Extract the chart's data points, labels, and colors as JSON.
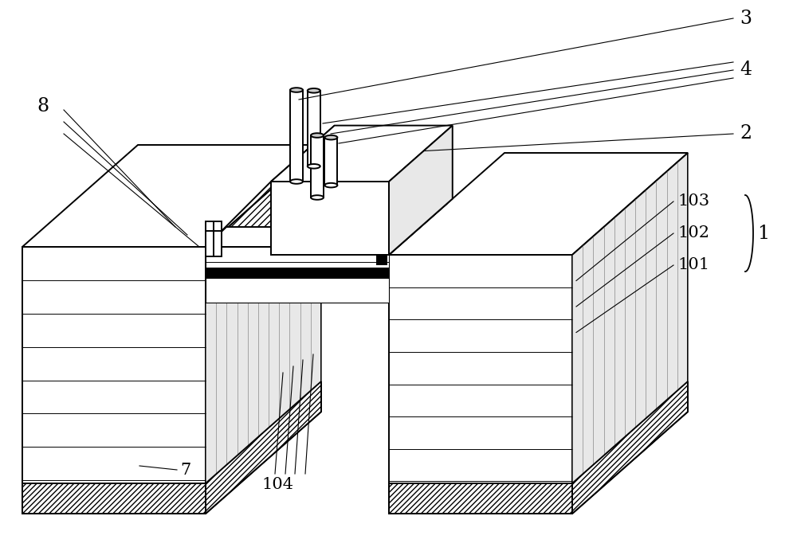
{
  "bg": "#ffffff",
  "lc": "#000000",
  "lw": 1.4,
  "lw_thin": 0.7,
  "lw_ann": 0.8,
  "figsize": [
    10.0,
    7.02
  ],
  "dpi": 100,
  "hatch_gray": "#888888",
  "face_gray": "#e8e8e8",
  "face_white": "#ffffff",
  "black": "#000000"
}
